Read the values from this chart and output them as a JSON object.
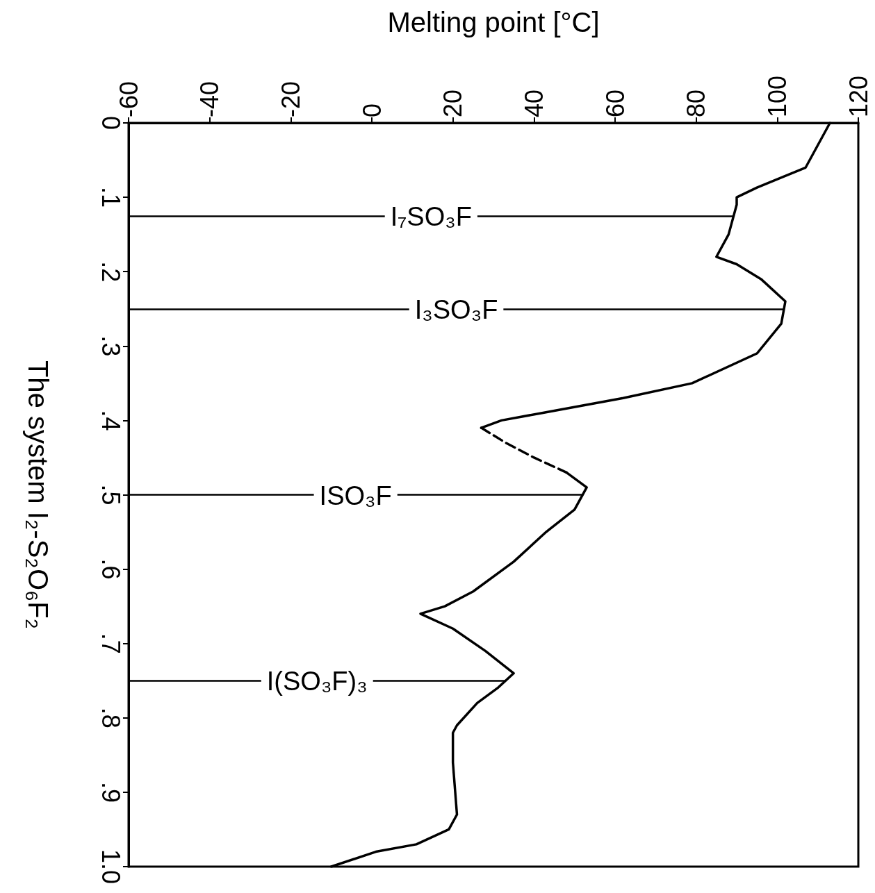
{
  "chart_data": {
    "type": "line",
    "orientation": "horizontal",
    "xlabel": "Melting point [°C]",
    "ylabel": "The system I₂-S₂O₆F₂",
    "xlim": [
      -60,
      120
    ],
    "xticks": [
      -60,
      -40,
      -20,
      0,
      20,
      40,
      60,
      80,
      100,
      120
    ],
    "ylim": [
      1,
      0
    ],
    "yticks": [
      0,
      {
        "value": 0.1,
        "label": ".1"
      },
      {
        "value": 0.2,
        "label": ".2"
      },
      {
        "value": 0.3,
        "label": ".3"
      },
      {
        "value": 0.4,
        "label": ".4"
      },
      {
        "value": 0.5,
        "label": ".5"
      },
      {
        "value": 0.6,
        "label": ".6"
      },
      {
        "value": 0.7,
        "label": ".7"
      },
      {
        "value": 0.8,
        "label": ".8"
      },
      {
        "value": 0.9,
        "label": ".9"
      },
      {
        "value": 1,
        "label": "1.0"
      }
    ],
    "marker": "none",
    "grid": false,
    "series": [
      {
        "color": "#000000",
        "line_style": "solid",
        "x": [
          0,
          0.06,
          0.087,
          0.1,
          0.11,
          0.15,
          0.18,
          0.19,
          0.21,
          0.24,
          0.27,
          0.31,
          0.35,
          0.37,
          0.39,
          0.4,
          0.41
        ],
        "values": [
          113,
          107,
          95,
          90,
          90,
          88,
          85,
          90,
          96,
          102,
          101,
          95,
          79,
          62,
          42,
          32,
          27
        ]
      },
      {
        "color": "#000000",
        "line_style": "dashed",
        "x": [
          0.41,
          0.43,
          0.45,
          0.47
        ],
        "values": [
          27,
          33,
          40,
          48
        ]
      },
      {
        "color": "#000000",
        "line_style": "solid",
        "x": [
          0.47,
          0.49,
          0.52,
          0.55,
          0.59,
          0.63,
          0.65,
          0.66,
          0.68,
          0.71,
          0.74,
          0.76,
          0.78,
          0.81,
          0.82,
          0.86,
          0.93,
          0.95,
          0.97,
          0.98,
          1
        ],
        "values": [
          48,
          53,
          50,
          43,
          35,
          25,
          18,
          12,
          20,
          28,
          35,
          31,
          26,
          21,
          20,
          20,
          21,
          19,
          11,
          1,
          -10
        ]
      }
    ],
    "ref_lines": [
      {
        "axis": "y",
        "value": 0.125,
        "label": "I₇SO₃F"
      },
      {
        "axis": "y",
        "value": 0.25,
        "label": "I₃SO₃F"
      },
      {
        "axis": "y",
        "value": 0.5,
        "label": "ISO₃F"
      },
      {
        "axis": "y",
        "value": 0.75,
        "label": "I(SO₃F)₃"
      }
    ]
  }
}
